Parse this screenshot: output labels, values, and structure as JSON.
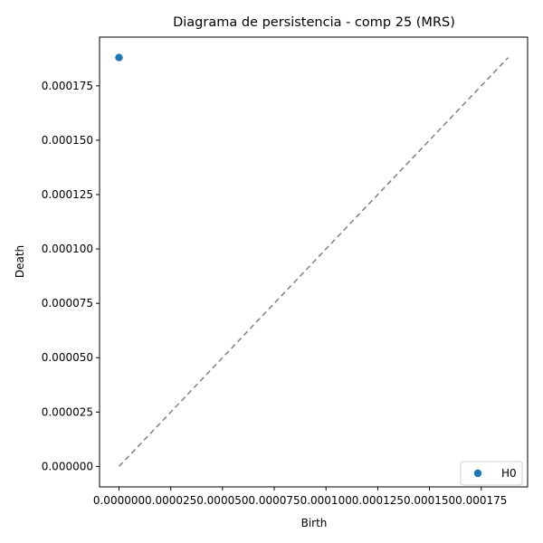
{
  "chart_data": {
    "type": "scatter",
    "title": "Diagrama de persistencia - comp 25 (MRS)",
    "xlabel": "Birth",
    "ylabel": "Death",
    "xlim": [
      -9.4e-06,
      0.0001974
    ],
    "ylim": [
      -9.4e-06,
      0.0001974
    ],
    "xticks": [
      0,
      2.5e-05,
      5e-05,
      7.5e-05,
      0.0001,
      0.000125,
      0.00015,
      0.000175
    ],
    "yticks": [
      0,
      2.5e-05,
      5e-05,
      7.5e-05,
      0.0001,
      0.000125,
      0.00015,
      0.000175
    ],
    "xtick_labels": [
      "0.000000",
      "0.000025",
      "0.000050",
      "0.000075",
      "0.000100",
      "0.000125",
      "0.000150",
      "0.000175"
    ],
    "ytick_labels": [
      "0.000000",
      "0.000025",
      "0.000050",
      "0.000075",
      "0.000100",
      "0.000125",
      "0.000150",
      "0.000175"
    ],
    "series": [
      {
        "name": "H0",
        "color": "#1f77b4",
        "points": [
          {
            "x": 0.0,
            "y": 0.000188
          }
        ]
      }
    ],
    "diagonal": {
      "from": [
        0,
        0
      ],
      "to": [
        0.000188,
        0.000188
      ],
      "color": "#808080",
      "style": "dashed"
    },
    "legend_position": "lower-right",
    "grid": false
  }
}
